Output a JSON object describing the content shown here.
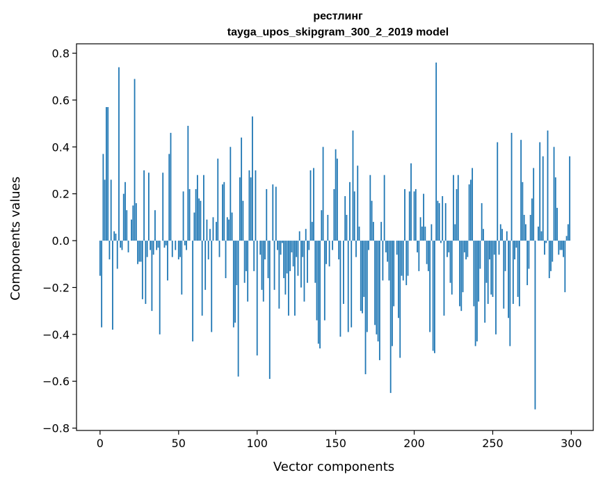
{
  "chart_data": {
    "type": "bar",
    "title": "рестлинг",
    "subtitle": "tayga_upos_skipgram_300_2_2019 model",
    "xlabel": "Vector components",
    "ylabel": "Components values",
    "xlim": [
      -15,
      314
    ],
    "ylim": [
      -0.81,
      0.84
    ],
    "xticks": [
      0,
      50,
      100,
      150,
      200,
      250,
      300
    ],
    "yticks": [
      -0.8,
      -0.6,
      -0.4,
      -0.2,
      0.0,
      0.2,
      0.4,
      0.6,
      0.8
    ],
    "ytick_labels": [
      "−0.8",
      "−0.6",
      "−0.4",
      "−0.2",
      "0.0",
      "0.2",
      "0.4",
      "0.6",
      "0.8"
    ],
    "bar_color": "#1f77b4",
    "grid": false,
    "values": [
      -0.15,
      -0.37,
      0.37,
      0.26,
      0.57,
      0.57,
      -0.08,
      0.26,
      -0.38,
      0.04,
      0.03,
      -0.12,
      0.74,
      -0.03,
      -0.04,
      0.2,
      0.25,
      0.13,
      -0.05,
      0.0,
      0.09,
      0.15,
      0.69,
      0.16,
      -0.1,
      -0.09,
      -0.09,
      -0.25,
      0.3,
      -0.27,
      -0.07,
      0.29,
      -0.04,
      -0.3,
      -0.06,
      0.13,
      -0.04,
      -0.03,
      -0.4,
      0.0,
      0.29,
      -0.03,
      -0.02,
      -0.17,
      0.37,
      0.46,
      -0.07,
      0.0,
      -0.04,
      0.0,
      -0.08,
      -0.07,
      -0.23,
      0.21,
      -0.02,
      -0.04,
      0.49,
      0.22,
      0.0,
      -0.43,
      0.12,
      0.22,
      0.28,
      0.18,
      0.17,
      -0.32,
      0.28,
      -0.21,
      0.09,
      -0.08,
      0.05,
      -0.39,
      0.1,
      0.0,
      0.08,
      0.35,
      -0.07,
      0.0,
      0.24,
      0.25,
      -0.16,
      0.1,
      0.09,
      0.4,
      0.12,
      -0.37,
      -0.35,
      -0.19,
      -0.58,
      0.27,
      0.44,
      0.17,
      -0.18,
      -0.13,
      -0.26,
      0.3,
      0.27,
      0.53,
      -0.13,
      0.3,
      -0.49,
      0.0,
      -0.06,
      -0.21,
      -0.26,
      -0.08,
      0.22,
      -0.16,
      -0.59,
      0.0,
      0.24,
      -0.21,
      0.23,
      -0.04,
      -0.29,
      -0.06,
      -0.01,
      -0.16,
      -0.23,
      -0.14,
      -0.32,
      -0.13,
      -0.05,
      -0.11,
      -0.32,
      -0.07,
      -0.15,
      0.04,
      -0.2,
      -0.07,
      -0.26,
      0.05,
      -0.18,
      -0.04,
      0.3,
      0.08,
      0.31,
      -0.18,
      -0.34,
      -0.44,
      -0.46,
      0.13,
      0.4,
      -0.34,
      -0.1,
      0.11,
      -0.11,
      0.0,
      -0.04,
      0.22,
      0.39,
      0.35,
      -0.08,
      -0.41,
      0.0,
      -0.27,
      0.19,
      0.11,
      -0.39,
      0.25,
      -0.37,
      0.47,
      0.21,
      -0.07,
      0.32,
      0.06,
      -0.3,
      -0.31,
      -0.24,
      -0.57,
      -0.39,
      -0.04,
      0.28,
      0.17,
      0.08,
      -0.36,
      -0.4,
      -0.43,
      -0.51,
      0.08,
      -0.17,
      0.28,
      -0.05,
      -0.09,
      -0.17,
      -0.65,
      -0.45,
      -0.28,
      0.0,
      -0.06,
      -0.33,
      -0.5,
      -0.15,
      -0.17,
      0.22,
      -0.19,
      -0.15,
      0.21,
      0.33,
      0.0,
      0.21,
      0.22,
      -0.05,
      -0.13,
      0.1,
      0.06,
      0.2,
      0.06,
      -0.1,
      -0.13,
      -0.39,
      0.07,
      -0.47,
      -0.48,
      0.76,
      0.17,
      0.16,
      -0.01,
      0.19,
      -0.32,
      0.16,
      -0.07,
      -0.05,
      -0.18,
      -0.23,
      0.28,
      0.07,
      0.22,
      0.28,
      -0.28,
      -0.3,
      -0.22,
      -0.05,
      -0.08,
      -0.07,
      0.24,
      0.26,
      0.31,
      -0.28,
      -0.45,
      -0.43,
      -0.26,
      -0.12,
      0.16,
      0.05,
      -0.35,
      -0.18,
      -0.27,
      -0.08,
      -0.23,
      -0.24,
      -0.06,
      -0.4,
      0.42,
      -0.06,
      0.07,
      0.05,
      -0.29,
      -0.13,
      0.04,
      -0.33,
      -0.45,
      0.46,
      -0.27,
      -0.08,
      -0.03,
      -0.24,
      -0.28,
      0.43,
      0.25,
      0.11,
      0.07,
      -0.19,
      -0.12,
      0.11,
      0.18,
      0.31,
      -0.72,
      0.0,
      0.06,
      0.42,
      0.04,
      0.36,
      -0.06,
      -0.01,
      0.47,
      -0.16,
      -0.13,
      -0.09,
      0.4,
      0.27,
      0.14,
      -0.06,
      -0.04,
      -0.04,
      -0.07,
      -0.22,
      0.02,
      0.07,
      0.36
    ]
  }
}
